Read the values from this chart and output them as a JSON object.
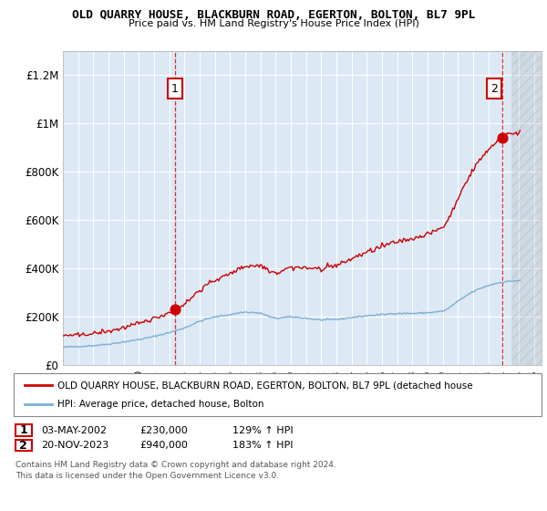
{
  "title": "OLD QUARRY HOUSE, BLACKBURN ROAD, EGERTON, BOLTON, BL7 9PL",
  "subtitle": "Price paid vs. HM Land Registry's House Price Index (HPI)",
  "ylim": [
    0,
    1300000
  ],
  "xlim_start": 1995.0,
  "xlim_end": 2026.5,
  "yticks": [
    0,
    200000,
    400000,
    600000,
    800000,
    1000000,
    1200000
  ],
  "ytick_labels": [
    "£0",
    "£200K",
    "£400K",
    "£600K",
    "£800K",
    "£1M",
    "£1.2M"
  ],
  "sale1_x": 2002.37,
  "sale1_y": 230000,
  "sale1_label": "1",
  "sale2_x": 2023.89,
  "sale2_y": 940000,
  "sale2_label": "2",
  "legend_line1": "OLD QUARRY HOUSE, BLACKBURN ROAD, EGERTON, BOLTON, BL7 9PL (detached house",
  "legend_line2": "HPI: Average price, detached house, Bolton",
  "table_row1": [
    "1",
    "03-MAY-2002",
    "£230,000",
    "129% ↑ HPI"
  ],
  "table_row2": [
    "2",
    "20-NOV-2023",
    "£940,000",
    "183% ↑ HPI"
  ],
  "footer": "Contains HM Land Registry data © Crown copyright and database right 2024.\nThis data is licensed under the Open Government Licence v3.0.",
  "line_color_red": "#cc0000",
  "line_color_blue": "#7bafd4",
  "chart_bg": "#dce9f5",
  "background_color": "#ffffff",
  "grid_color": "#ffffff"
}
